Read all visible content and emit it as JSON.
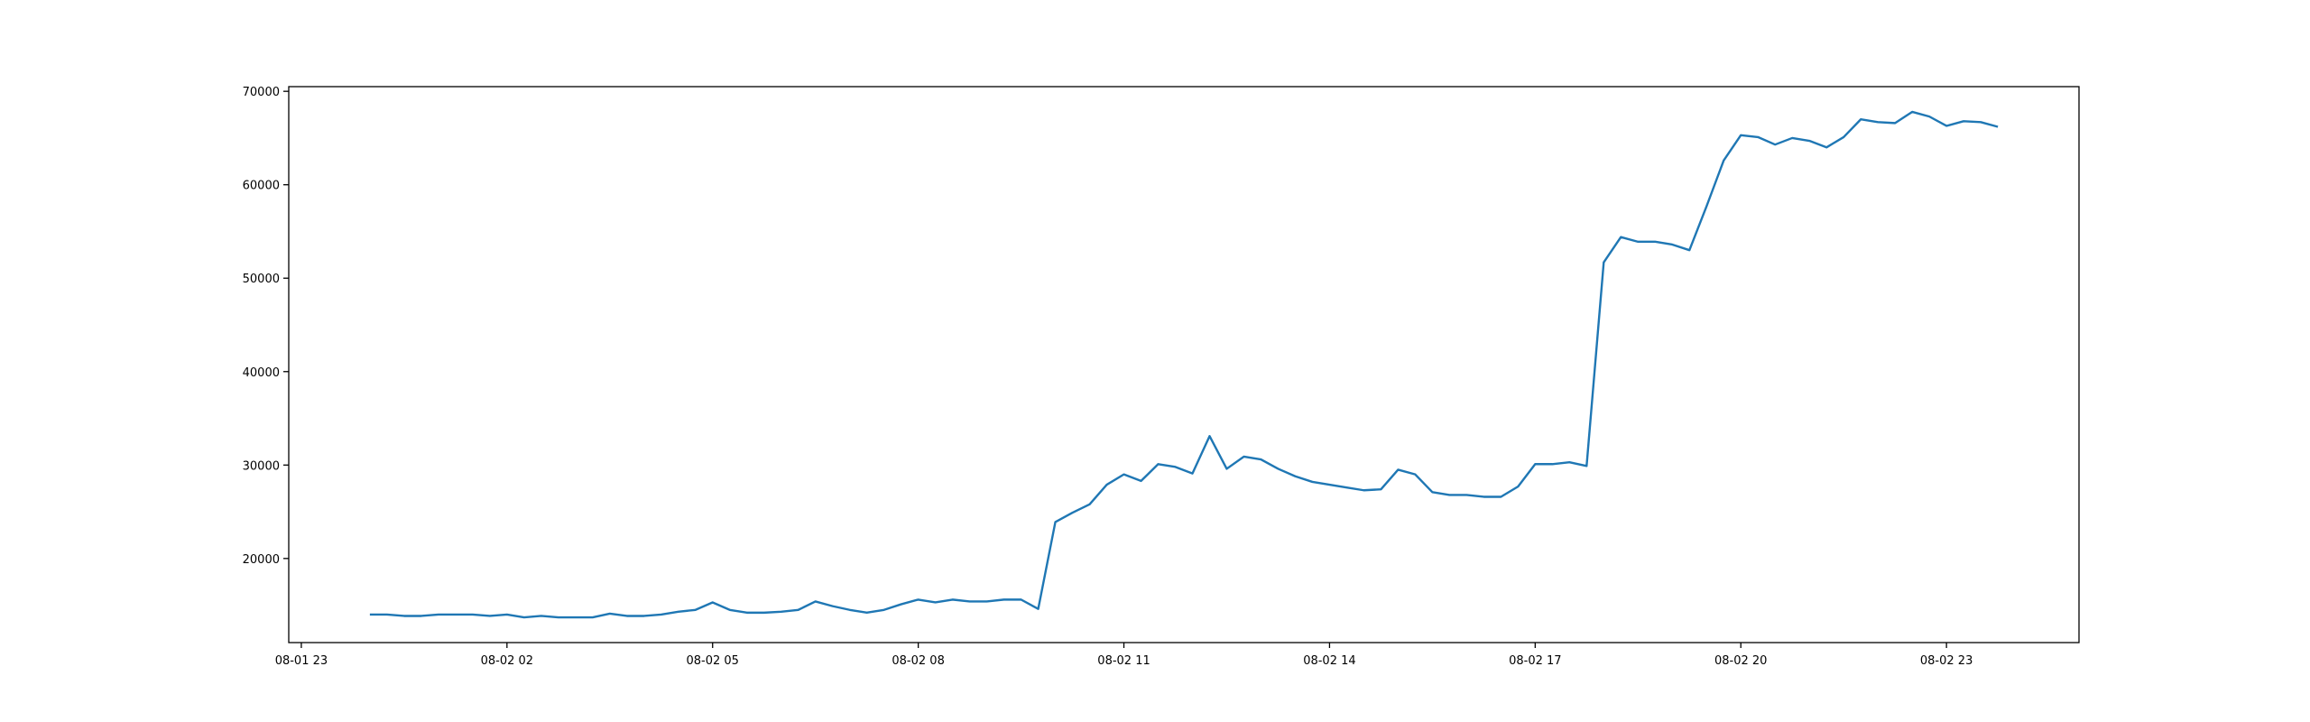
{
  "chart_data": {
    "type": "line",
    "x": [
      "08-02 00:00",
      "08-02 00:15",
      "08-02 00:30",
      "08-02 00:45",
      "08-02 01:00",
      "08-02 01:15",
      "08-02 01:30",
      "08-02 01:45",
      "08-02 02:00",
      "08-02 02:15",
      "08-02 02:30",
      "08-02 02:45",
      "08-02 03:00",
      "08-02 03:15",
      "08-02 03:30",
      "08-02 03:45",
      "08-02 04:00",
      "08-02 04:15",
      "08-02 04:30",
      "08-02 04:45",
      "08-02 05:00",
      "08-02 05:15",
      "08-02 05:30",
      "08-02 05:45",
      "08-02 06:00",
      "08-02 06:15",
      "08-02 06:30",
      "08-02 06:45",
      "08-02 07:00",
      "08-02 07:15",
      "08-02 07:30",
      "08-02 07:45",
      "08-02 08:00",
      "08-02 08:15",
      "08-02 08:30",
      "08-02 08:45",
      "08-02 09:00",
      "08-02 09:15",
      "08-02 09:30",
      "08-02 09:45",
      "08-02 10:00",
      "08-02 10:15",
      "08-02 10:30",
      "08-02 10:45",
      "08-02 11:00",
      "08-02 11:15",
      "08-02 11:30",
      "08-02 11:45",
      "08-02 12:00",
      "08-02 12:15",
      "08-02 12:30",
      "08-02 12:45",
      "08-02 13:00",
      "08-02 13:15",
      "08-02 13:30",
      "08-02 13:45",
      "08-02 14:00",
      "08-02 14:15",
      "08-02 14:30",
      "08-02 14:45",
      "08-02 15:00",
      "08-02 15:15",
      "08-02 15:30",
      "08-02 15:45",
      "08-02 16:00",
      "08-02 16:15",
      "08-02 16:30",
      "08-02 16:45",
      "08-02 17:00",
      "08-02 17:15",
      "08-02 17:30",
      "08-02 17:45",
      "08-02 18:00",
      "08-02 18:15",
      "08-02 18:30",
      "08-02 18:45",
      "08-02 19:00",
      "08-02 19:15",
      "08-02 19:30",
      "08-02 19:45",
      "08-02 20:00",
      "08-02 20:15",
      "08-02 20:30",
      "08-02 20:45",
      "08-02 21:00",
      "08-02 21:15",
      "08-02 21:30",
      "08-02 21:45",
      "08-02 22:00",
      "08-02 22:15",
      "08-02 22:30",
      "08-02 22:45",
      "08-02 23:00",
      "08-02 23:15",
      "08-02 23:30",
      "08-02 23:45"
    ],
    "series": [
      {
        "color": "#1f77b4",
        "values": [
          14000,
          14000,
          13850,
          13850,
          14000,
          14000,
          14000,
          13850,
          14000,
          13700,
          13850,
          13700,
          13700,
          13700,
          14100,
          13850,
          13850,
          14000,
          14300,
          14500,
          15300,
          14500,
          14200,
          14200,
          14300,
          14500,
          15400,
          14900,
          14500,
          14200,
          14500,
          15100,
          15600,
          15300,
          15600,
          15400,
          15400,
          15600,
          15600,
          14600,
          23900,
          24900,
          25800,
          27900,
          29000,
          28300,
          30100,
          29800,
          29100,
          33100,
          29600,
          30900,
          30600,
          29600,
          28800,
          28200,
          27900,
          27600,
          27300,
          27400,
          29500,
          29000,
          27100,
          26800,
          26800,
          26600,
          26600,
          27700,
          30100,
          30100,
          30300,
          29900,
          51700,
          54400,
          53900,
          53900,
          53600,
          53000,
          57700,
          62600,
          65300,
          65100,
          64300,
          65000,
          64700,
          64000,
          65100,
          67000,
          66700,
          66600,
          67800,
          67300,
          66300,
          66800,
          66700,
          66200
        ]
      }
    ],
    "xlim": [
      "08-01 22:49",
      "08-03 00:56"
    ],
    "xticks": [
      "08-01 23",
      "08-02 02",
      "08-02 05",
      "08-02 08",
      "08-02 11",
      "08-02 14",
      "08-02 17",
      "08-02 20",
      "08-02 23"
    ],
    "ylim": [
      11000,
      70500
    ],
    "yticks": [
      20000,
      30000,
      40000,
      50000,
      60000,
      70000
    ]
  }
}
